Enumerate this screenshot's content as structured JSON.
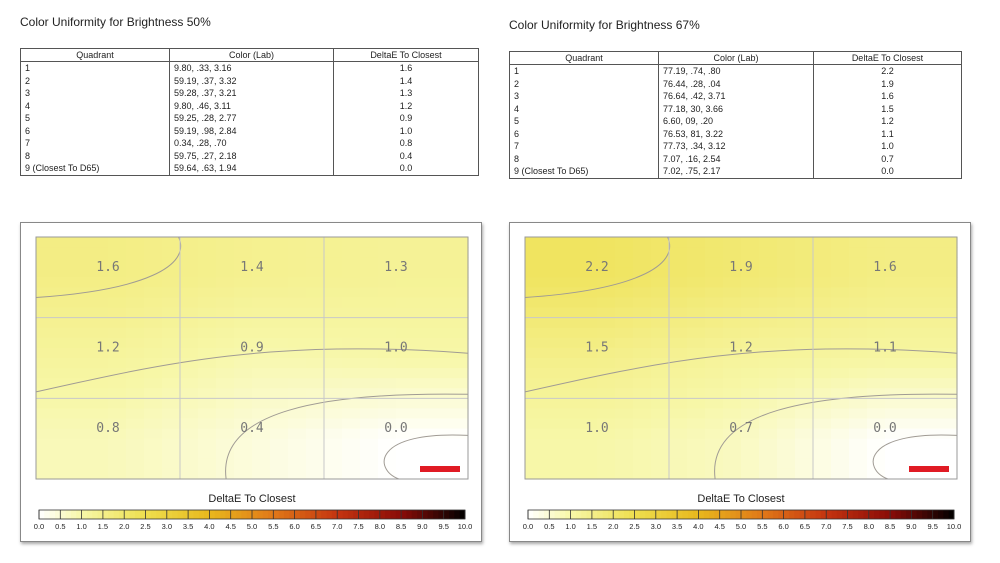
{
  "chart_data": [
    {
      "type": "heatmap",
      "title": "Color Uniformity for Brightness 50%",
      "table": {
        "headers": [
          "Quadrant",
          "Color (Lab)",
          "DeltaE To Closest"
        ],
        "rows": [
          [
            "1",
            "9.80,    .33,   3.16",
            "1.6"
          ],
          [
            "2",
            "59.19,    .37,   3.32",
            "1.4"
          ],
          [
            "3",
            "59.28,    .37,   3.21",
            "1.3"
          ],
          [
            "4",
            "9.80,    .46,   3.11",
            "1.2"
          ],
          [
            "5",
            "59.25,    .28,   2.77",
            "0.9"
          ],
          [
            "6",
            "59.19,    .98,   2.84",
            "1.0"
          ],
          [
            "7",
            "0.34,    .28,    .70",
            "0.8"
          ],
          [
            "8",
            "59.75,    .27,   2.18",
            "0.4"
          ],
          [
            "9 (Closest To D65)",
            "59.64,    .63,   1.94",
            "0.0"
          ]
        ]
      },
      "grid": [
        [
          1.6,
          1.4,
          1.3
        ],
        [
          1.2,
          0.9,
          1.0
        ],
        [
          0.8,
          0.4,
          0.0
        ]
      ],
      "grid_labels": [
        [
          "1.6",
          "1.4",
          "1.3"
        ],
        [
          "1.2",
          "0.9",
          "1.0"
        ],
        [
          "0.8",
          "0.4",
          "0.0"
        ]
      ],
      "colorbar": {
        "title": "DeltaE To Closest",
        "range": [
          0,
          10
        ],
        "ticks": [
          "0.0",
          "0.5",
          "1.0",
          "1.5",
          "2.0",
          "2.5",
          "3.0",
          "3.5",
          "4.0",
          "4.5",
          "5.0",
          "5.5",
          "6.0",
          "6.5",
          "7.0",
          "7.5",
          "8.0",
          "8.5",
          "9.0",
          "9.5",
          "10.0"
        ]
      }
    },
    {
      "type": "heatmap",
      "title": "Color Uniformity for Brightness 67%",
      "table": {
        "headers": [
          "Quadrant",
          "Color (Lab)",
          "DeltaE To Closest"
        ],
        "rows": [
          [
            "1",
            "77.19,    .74,    .80",
            "2.2"
          ],
          [
            "2",
            "76.44,    .28,    .04",
            "1.9"
          ],
          [
            "3",
            "76.64,    .42,   3.71",
            "1.6"
          ],
          [
            "4",
            "77.18,    30,   3.66",
            "1.5"
          ],
          [
            "5",
            "6.60,    09,    .20",
            "1.2"
          ],
          [
            "6",
            "76.53,    81,   3.22",
            "1.1"
          ],
          [
            "7",
            "77.73,    .34,   3.12",
            "1.0"
          ],
          [
            "8",
            "7.07,    .16,   2.54",
            "0.7"
          ],
          [
            "9 (Closest To D65)",
            "7.02,    .75,   2.17",
            "0.0"
          ]
        ]
      },
      "grid": [
        [
          2.2,
          1.9,
          1.6
        ],
        [
          1.5,
          1.2,
          1.1
        ],
        [
          1.0,
          0.7,
          0.0
        ]
      ],
      "grid_labels": [
        [
          "2.2",
          "1.9",
          "1.6"
        ],
        [
          "1.5",
          "1.2",
          "1.1"
        ],
        [
          "1.0",
          "0.7",
          "0.0"
        ]
      ],
      "colorbar": {
        "title": "DeltaE To Closest",
        "range": [
          0,
          10
        ],
        "ticks": [
          "0.0",
          "0.5",
          "1.0",
          "1.5",
          "2.0",
          "2.5",
          "3.0",
          "3.5",
          "4.0",
          "4.5",
          "5.0",
          "5.5",
          "6.0",
          "6.5",
          "7.0",
          "7.5",
          "8.0",
          "8.5",
          "9.0",
          "9.5",
          "10.0"
        ]
      }
    }
  ],
  "colors": {
    "scale_stops": [
      "#ffffff",
      "#f7f7a8",
      "#eedf4e",
      "#e8b81d",
      "#e07818",
      "#c43410",
      "#8a0c08",
      "#000000"
    ],
    "contour": "#a09b94",
    "grid_line": "#c8c8c8",
    "marker": "#e01b24"
  }
}
